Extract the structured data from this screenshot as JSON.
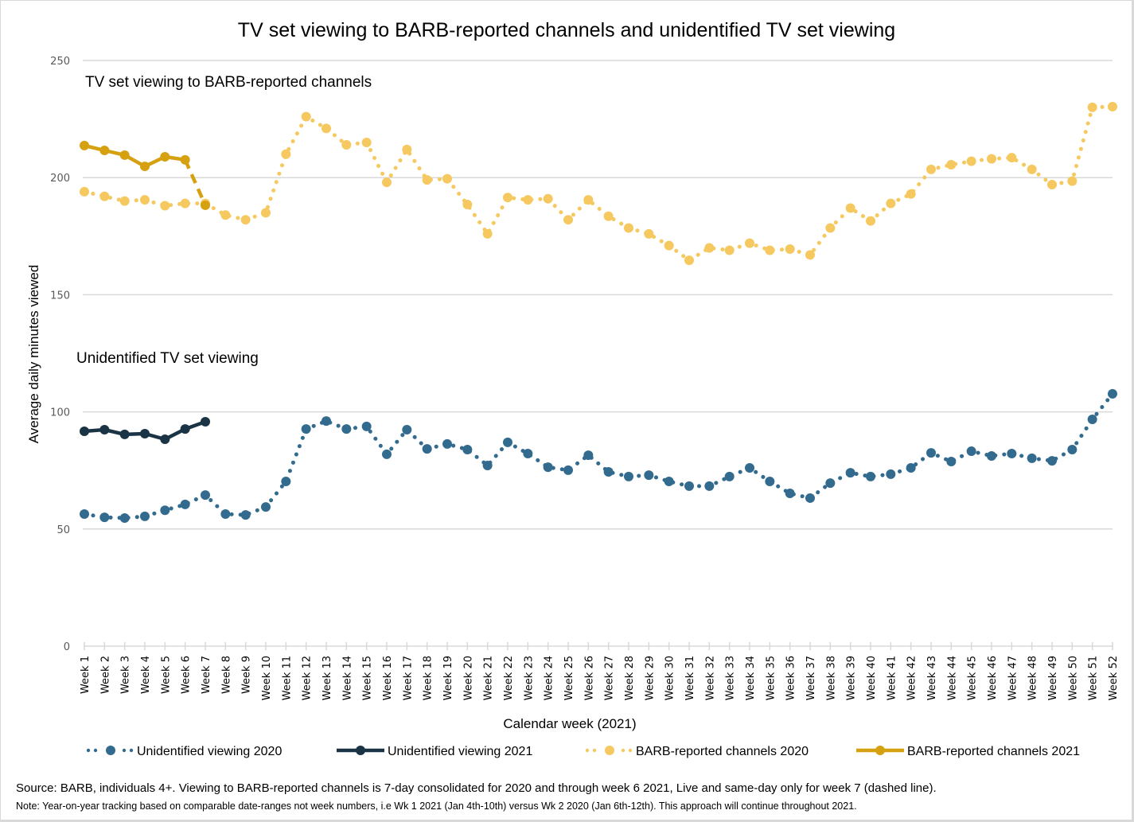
{
  "chart_data": {
    "type": "line",
    "title": "TV set viewing to BARB-reported channels and unidentified TV set viewing",
    "xlabel": "Calendar week (2021)",
    "ylabel": "Average daily minutes viewed",
    "ylim": [
      0,
      250
    ],
    "yticks": [
      0,
      50,
      100,
      150,
      200,
      250
    ],
    "grid": true,
    "legend_position": "bottom",
    "categories": [
      "Week 1",
      "Week 2",
      "Week 3",
      "Week 4",
      "Week 5",
      "Week 6",
      "Week 7",
      "Week 8",
      "Week 9",
      "Week 10",
      "Week 11",
      "Week 12",
      "Week 13",
      "Week 14",
      "Week 15",
      "Week 16",
      "Week 17",
      "Week 18",
      "Week 19",
      "Week 20",
      "Week 21",
      "Week 22",
      "Week 23",
      "Week 24",
      "Week 25",
      "Week 26",
      "Week 27",
      "Week 28",
      "Week 29",
      "Week 30",
      "Week 31",
      "Week 32",
      "Week 33",
      "Week 34",
      "Week 35",
      "Week 36",
      "Week 37",
      "Week 38",
      "Week 39",
      "Week 40",
      "Week 41",
      "Week 42",
      "Week 43",
      "Week 44",
      "Week 45",
      "Week 46",
      "Week 47",
      "Week 48",
      "Week 49",
      "Week 50",
      "Week 51",
      "Week 52"
    ],
    "annotations": [
      {
        "text": "TV set viewing to BARB-reported channels",
        "near_series": "BARB-reported channels 2020"
      },
      {
        "text": "Unidentified TV set viewing",
        "near_series": "Unidentified viewing 2020"
      }
    ],
    "series": [
      {
        "name": "Unidentified viewing 2020",
        "color": "#336b8f",
        "style": "dotted",
        "values": [
          56.4,
          55.0,
          54.7,
          55.4,
          58.0,
          60.5,
          64.5,
          56.4,
          56.0,
          59.4,
          70.3,
          92.7,
          96.1,
          92.7,
          93.8,
          81.9,
          92.4,
          84.2,
          86.3,
          83.9,
          77.1,
          87.0,
          82.2,
          76.4,
          75.1,
          81.5,
          74.4,
          72.4,
          73.0,
          70.3,
          68.3,
          68.3,
          72.4,
          76.1,
          70.3,
          65.2,
          63.2,
          69.6,
          74.0,
          72.4,
          73.4,
          76.1,
          82.5,
          78.8,
          83.2,
          81.2,
          82.2,
          80.2,
          79.1,
          83.9,
          96.8,
          107.7
        ]
      },
      {
        "name": "Unidentified viewing 2021",
        "color": "#1a3446",
        "style": "solid",
        "values": [
          91.7,
          92.4,
          90.4,
          90.7,
          88.3,
          92.7,
          95.8
        ]
      },
      {
        "name": "BARB-reported channels 2020",
        "color": "#f5c960",
        "style": "dotted",
        "values": [
          194.0,
          192.0,
          190.0,
          190.5,
          188.0,
          189.0,
          189.0,
          184.0,
          182.0,
          185.0,
          210.0,
          226.0,
          221.0,
          214.0,
          215.0,
          198.0,
          212.0,
          199.0,
          199.5,
          188.5,
          176.0,
          191.5,
          190.5,
          191.0,
          182.0,
          190.5,
          183.5,
          178.5,
          176.0,
          171.0,
          164.7,
          170.0,
          169.0,
          172.0,
          169.0,
          169.5,
          167.0,
          178.5,
          187.0,
          181.5,
          189.0,
          193.0,
          203.5,
          205.5,
          207.0,
          208.0,
          208.5,
          203.5,
          197.0,
          198.5,
          230.0,
          230.3
        ]
      },
      {
        "name": "BARB-reported channels 2021",
        "color": "#d6a110",
        "style": "solid",
        "dashed_last_segment": true,
        "values": [
          213.7,
          211.6,
          209.6,
          204.8,
          208.9,
          207.6,
          188.2
        ]
      }
    ]
  },
  "footer": {
    "source": "Source: BARB, individuals 4+. Viewing to BARB-reported channels is 7-day consolidated for 2020 and through week 6 2021, Live and same-day only for week 7 (dashed line).",
    "note": "Note: Year-on-year tracking based on comparable date-ranges not week numbers, i.e Wk 1 2021 (Jan 4th-10th) versus Wk 2 2020 (Jan 6th-12th). This approach will continue throughout 2021."
  }
}
